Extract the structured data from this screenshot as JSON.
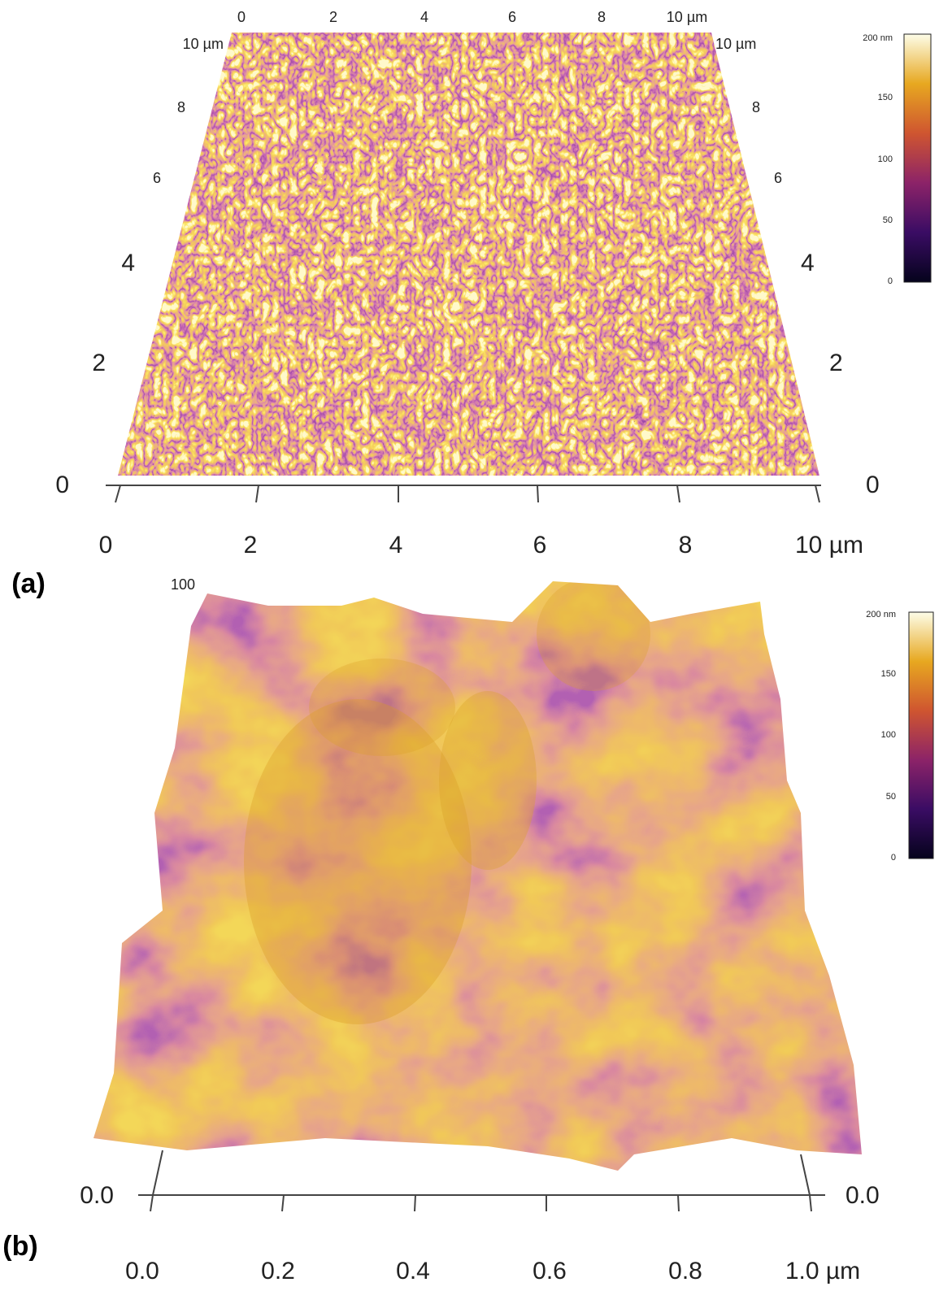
{
  "panels": [
    {
      "label": "(a)",
      "top_axis": [
        "0",
        "2",
        "4",
        "6",
        "8",
        "10 µm"
      ],
      "left_axis": [
        "10 µm",
        "8",
        "6",
        "4",
        "2",
        "0"
      ],
      "right_axis": [
        "10 µm",
        "8",
        "6",
        "4",
        "2",
        "0"
      ],
      "bottom_axis": [
        "0",
        "2",
        "4",
        "6",
        "8",
        "10 µm"
      ],
      "colorbar": [
        "200 nm",
        "150",
        "100",
        "50",
        "0"
      ]
    },
    {
      "label": "(b)",
      "z_label": "100",
      "left_axis": [
        "0.0"
      ],
      "right_axis": [
        "0.0"
      ],
      "bottom_axis": [
        "0.0",
        "0.2",
        "0.4",
        "0.6",
        "0.8",
        "1.0 µm"
      ],
      "colorbar": [
        "200 nm",
        "150",
        "100",
        "50",
        "0"
      ]
    }
  ]
}
